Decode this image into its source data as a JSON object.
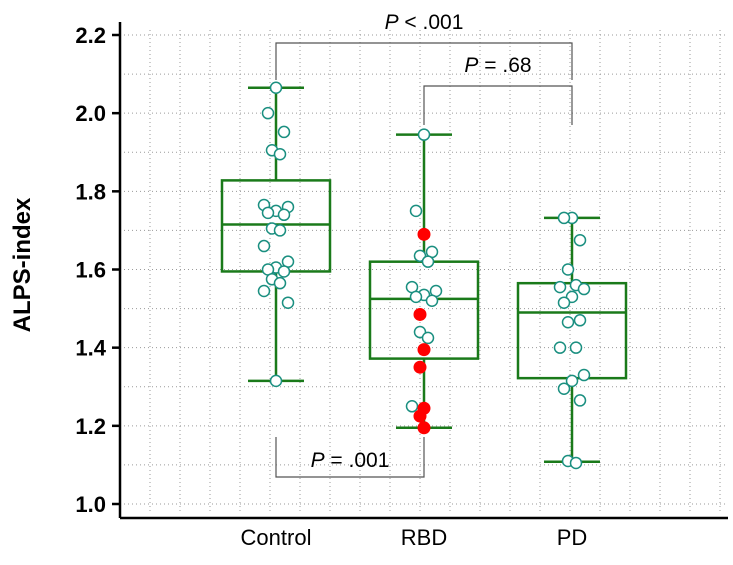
{
  "chart_data": {
    "type": "box",
    "ylabel": "ALPS-index",
    "ylim": [
      1.0,
      2.2
    ],
    "yticks": [
      "1.0",
      "1.2",
      "1.4",
      "1.6",
      "1.8",
      "2.0",
      "2.2"
    ],
    "grid": true,
    "categories": [
      "Control",
      "RBD",
      "PD"
    ],
    "colors": {
      "box": "#1a7a1a",
      "point_outline": "#1a8f80",
      "highlight": "#ff0000"
    },
    "boxes": [
      {
        "name": "Control",
        "min": 1.315,
        "q1": 1.595,
        "median": 1.715,
        "q3": 1.828,
        "max": 2.065
      },
      {
        "name": "RBD",
        "min": 1.195,
        "q1": 1.372,
        "median": 1.525,
        "q3": 1.62,
        "max": 1.945
      },
      {
        "name": "PD",
        "min": 1.108,
        "q1": 1.322,
        "median": 1.49,
        "q3": 1.565,
        "max": 1.732
      }
    ],
    "points": [
      {
        "group": "Control",
        "values": [
          2.065,
          2.0,
          1.952,
          1.905,
          1.895,
          1.765,
          1.76,
          1.75,
          1.745,
          1.74,
          1.705,
          1.7,
          1.66,
          1.62,
          1.605,
          1.6,
          1.595,
          1.575,
          1.565,
          1.545,
          1.515,
          1.315
        ]
      },
      {
        "group": "RBD",
        "values": [
          1.945,
          1.75,
          1.645,
          1.635,
          1.62,
          1.555,
          1.545,
          1.535,
          1.53,
          1.52,
          1.44,
          1.425,
          1.25
        ],
        "highlight": [
          1.69,
          1.485,
          1.395,
          1.35,
          1.245,
          1.225,
          1.195
        ]
      },
      {
        "group": "PD",
        "values": [
          1.732,
          1.732,
          1.675,
          1.6,
          1.56,
          1.555,
          1.55,
          1.53,
          1.515,
          1.47,
          1.465,
          1.4,
          1.4,
          1.33,
          1.315,
          1.295,
          1.265,
          1.11,
          1.105
        ]
      }
    ],
    "annotations": [
      {
        "prefix": "P",
        "text": " < .001",
        "from": "Control",
        "to": "PD",
        "position": "top"
      },
      {
        "prefix": "P",
        "text": " = .68",
        "from": "RBD",
        "to": "PD",
        "position": "top"
      },
      {
        "prefix": "P",
        "text": " = .001",
        "from": "Control",
        "to": "RBD",
        "position": "bottom"
      }
    ]
  }
}
